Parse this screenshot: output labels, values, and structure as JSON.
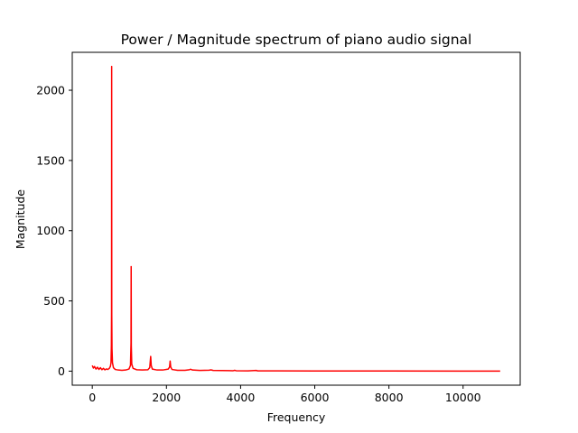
{
  "chart_data": {
    "type": "line",
    "title": "Power / Magnitude spectrum of piano audio signal",
    "xlabel": "Frequency",
    "ylabel": "Magnitude",
    "xlim": [
      -540,
      11540
    ],
    "ylim": [
      -100,
      2270
    ],
    "xticks": [
      0,
      2000,
      4000,
      6000,
      8000,
      10000
    ],
    "yticks": [
      0,
      500,
      1000,
      1500,
      2000
    ],
    "grid": false,
    "legend": "none",
    "series": [
      {
        "color": "#ff0000",
        "points": [
          [
            0,
            40
          ],
          [
            30,
            22
          ],
          [
            60,
            33
          ],
          [
            100,
            15
          ],
          [
            140,
            28
          ],
          [
            180,
            12
          ],
          [
            220,
            25
          ],
          [
            260,
            10
          ],
          [
            300,
            20
          ],
          [
            340,
            9
          ],
          [
            380,
            16
          ],
          [
            420,
            12
          ],
          [
            460,
            20
          ],
          [
            490,
            35
          ],
          [
            505,
            60
          ],
          [
            515,
            180
          ],
          [
            520,
            420
          ],
          [
            523,
            2170
          ],
          [
            526,
            400
          ],
          [
            532,
            160
          ],
          [
            545,
            60
          ],
          [
            570,
            25
          ],
          [
            620,
            12
          ],
          [
            700,
            8
          ],
          [
            800,
            6
          ],
          [
            900,
            8
          ],
          [
            990,
            15
          ],
          [
            1030,
            40
          ],
          [
            1045,
            200
          ],
          [
            1049,
            745
          ],
          [
            1053,
            180
          ],
          [
            1065,
            50
          ],
          [
            1100,
            20
          ],
          [
            1200,
            10
          ],
          [
            1350,
            8
          ],
          [
            1500,
            10
          ],
          [
            1550,
            25
          ],
          [
            1575,
            105
          ],
          [
            1590,
            40
          ],
          [
            1620,
            15
          ],
          [
            1750,
            8
          ],
          [
            1900,
            8
          ],
          [
            2050,
            15
          ],
          [
            2085,
            30
          ],
          [
            2100,
            72
          ],
          [
            2115,
            30
          ],
          [
            2150,
            12
          ],
          [
            2300,
            6
          ],
          [
            2500,
            6
          ],
          [
            2620,
            10
          ],
          [
            2650,
            14
          ],
          [
            2700,
            8
          ],
          [
            2900,
            5
          ],
          [
            3150,
            7
          ],
          [
            3200,
            9
          ],
          [
            3260,
            5
          ],
          [
            3500,
            4
          ],
          [
            3800,
            3
          ],
          [
            3840,
            6
          ],
          [
            3880,
            3
          ],
          [
            4200,
            2
          ],
          [
            4420,
            5
          ],
          [
            4460,
            2
          ],
          [
            5000,
            2
          ],
          [
            6000,
            1
          ],
          [
            8000,
            1
          ],
          [
            11000,
            0
          ]
        ]
      }
    ]
  }
}
